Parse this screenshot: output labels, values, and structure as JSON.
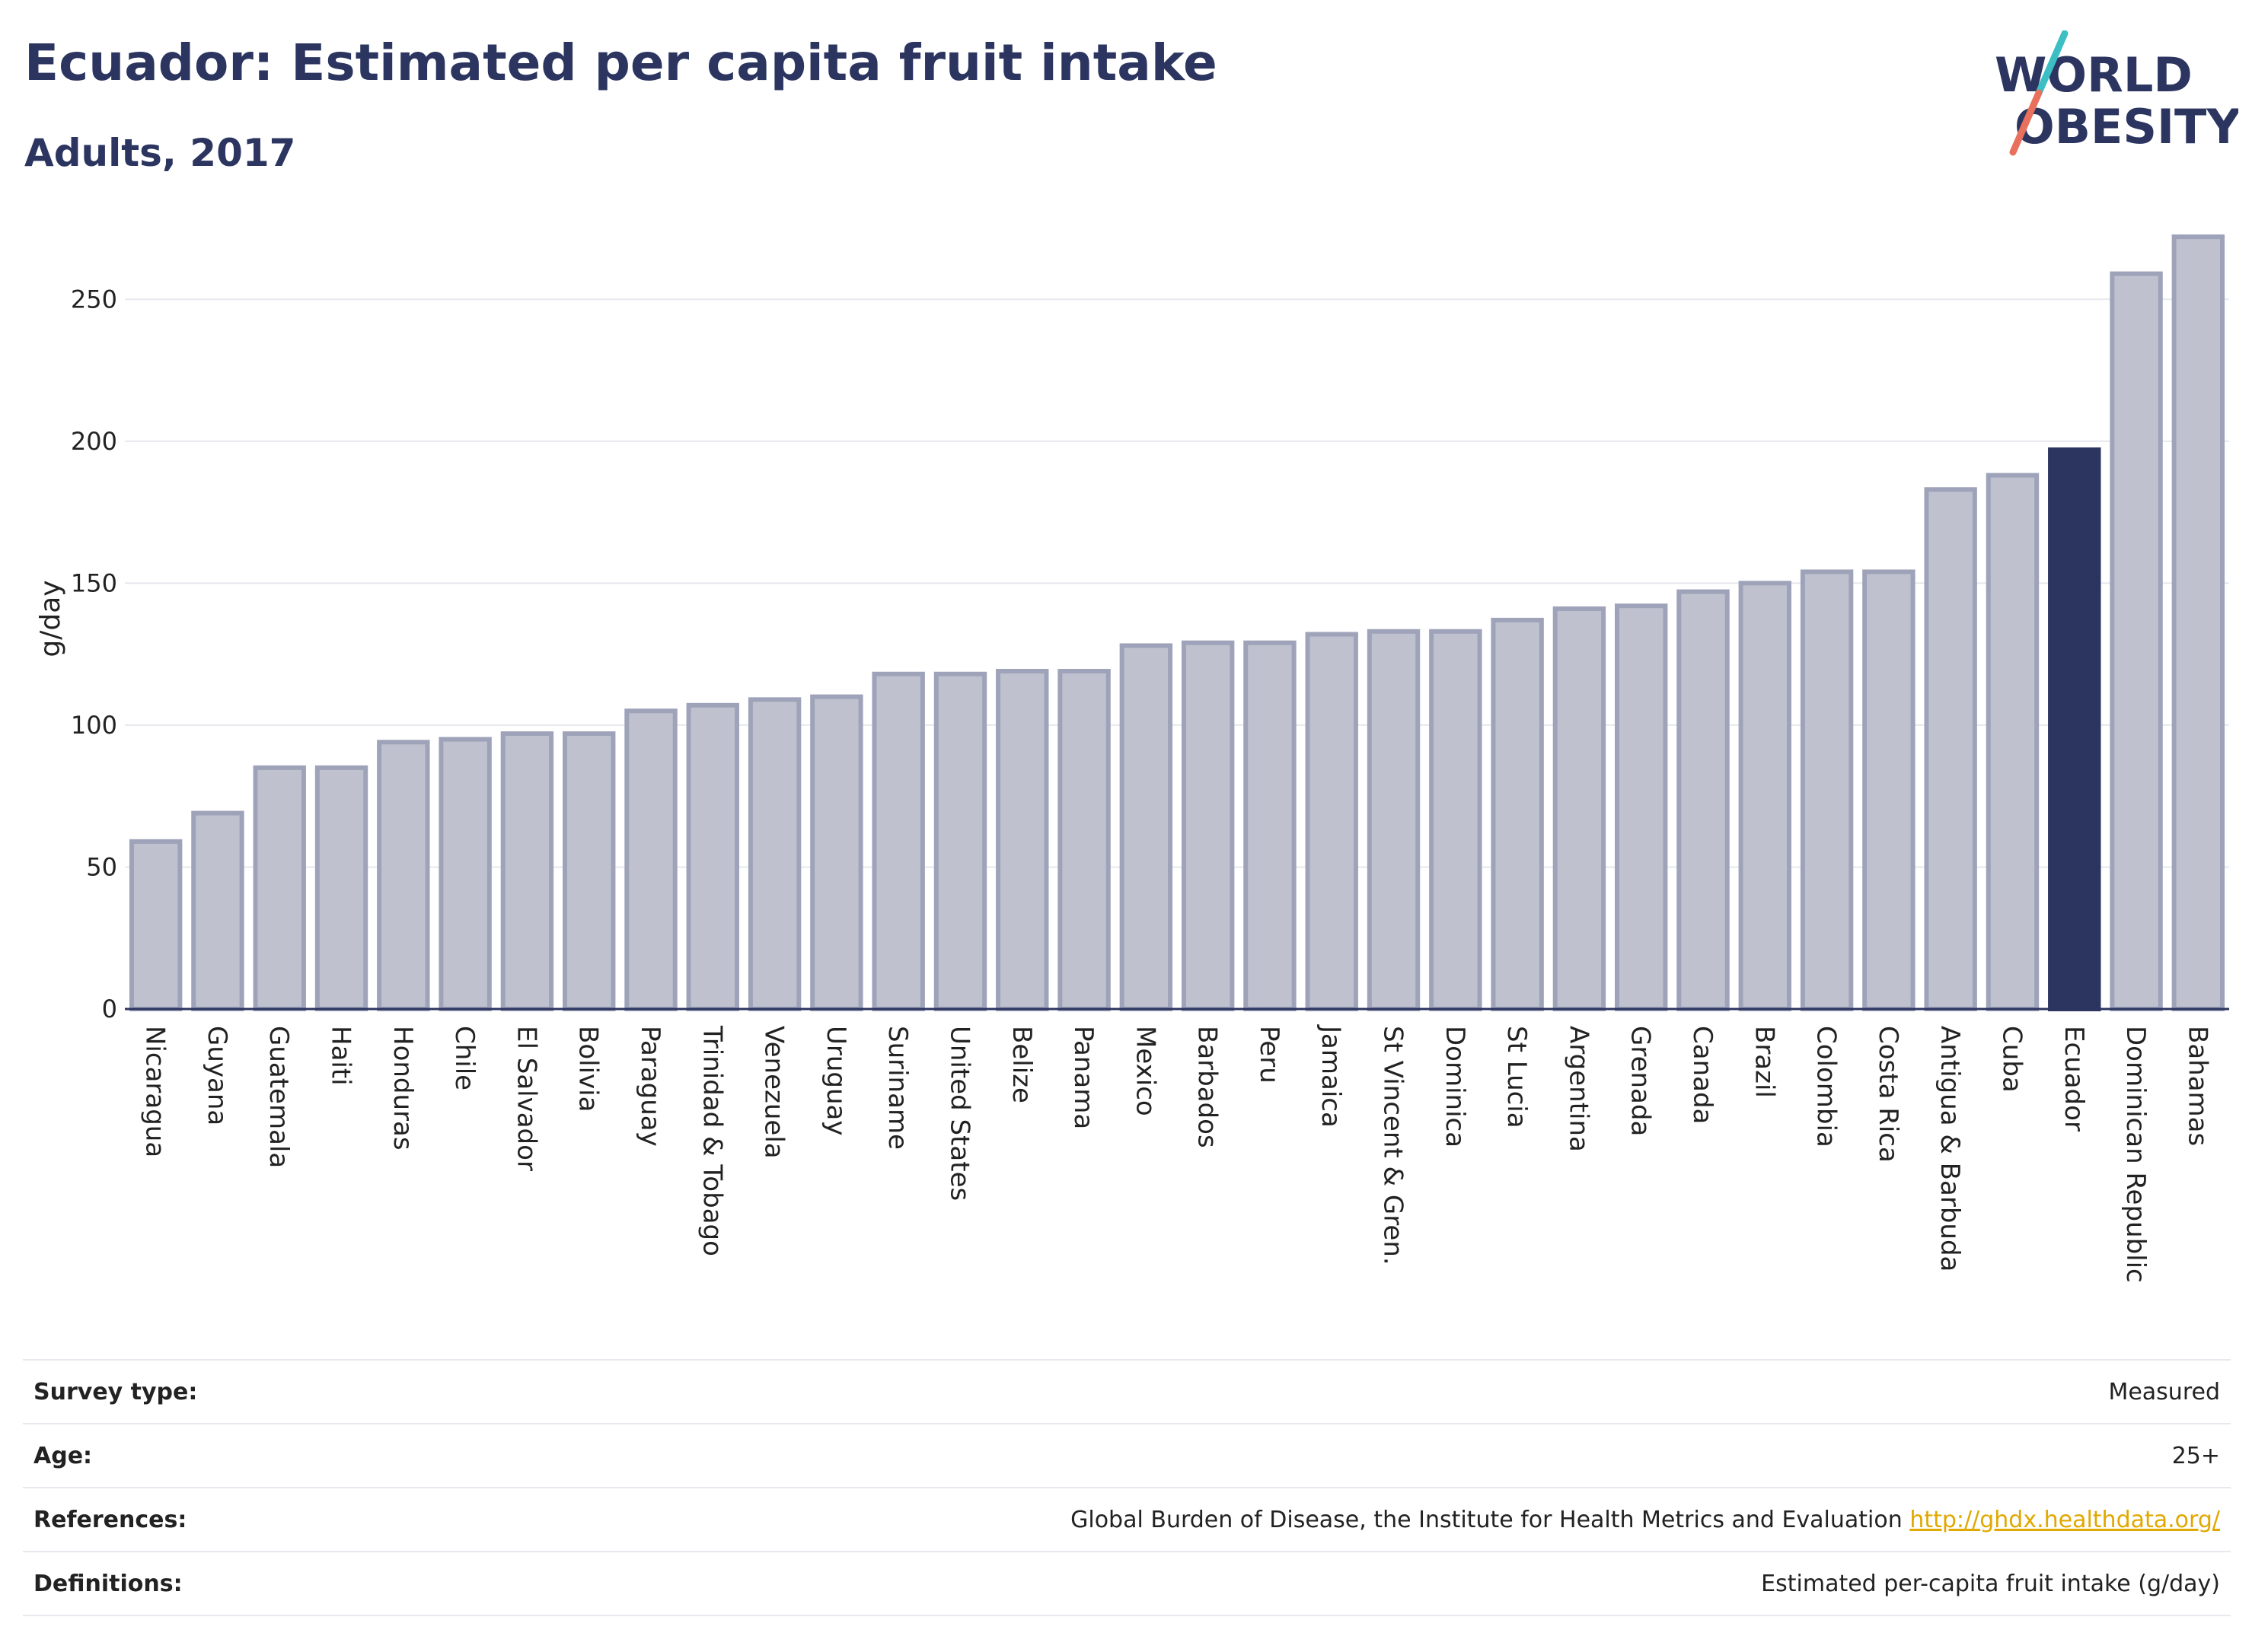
{
  "header": {
    "title": "Ecuador: Estimated per capita fruit intake",
    "subtitle": "Adults, 2017"
  },
  "logo": {
    "line1": "WORLD",
    "line2": "OBESITY",
    "colors": [
      "#2b3560",
      "#3bbfc4",
      "#e8705c"
    ]
  },
  "chart_data": {
    "type": "bar",
    "ylabel": "g/day",
    "xlabel": "",
    "ylim": [
      0,
      275
    ],
    "yticks": [
      0,
      50,
      100,
      150,
      200,
      250
    ],
    "grid": true,
    "highlight": "Ecuador",
    "colors": {
      "bar": "#bfc2ce",
      "bar_border": "#9ea3b9",
      "highlight": "#2b3560"
    },
    "categories": [
      "Nicaragua",
      "Guyana",
      "Guatemala",
      "Haiti",
      "Honduras",
      "Chile",
      "El Salvador",
      "Bolivia",
      "Paraguay",
      "Trinidad & Tobago",
      "Venezuela",
      "Uruguay",
      "Suriname",
      "United States",
      "Belize",
      "Panama",
      "Mexico",
      "Barbados",
      "Peru",
      "Jamaica",
      "St Vincent & Gren.",
      "Dominica",
      "St Lucia",
      "Argentina",
      "Grenada",
      "Canada",
      "Brazil",
      "Colombia",
      "Costa Rica",
      "Antigua & Barbuda",
      "Cuba",
      "Ecuador",
      "Dominican Republic",
      "Bahamas"
    ],
    "values": [
      59,
      69,
      85,
      85,
      94,
      95,
      97,
      97,
      105,
      107,
      109,
      110,
      118,
      118,
      119,
      119,
      128,
      129,
      129,
      132,
      133,
      133,
      137,
      141,
      142,
      147,
      150,
      154,
      154,
      183,
      188,
      197,
      259,
      272
    ]
  },
  "info": [
    {
      "label": "Survey type:",
      "value": "Measured"
    },
    {
      "label": "Age:",
      "value": "25+"
    },
    {
      "label": "References:",
      "value": "Global Burden of Disease, the Institute for Health Metrics and Evaluation",
      "link": "http://ghdx.healthdata.org/"
    },
    {
      "label": "Definitions:",
      "value": "Estimated per-capita fruit intake (g/day)"
    }
  ]
}
